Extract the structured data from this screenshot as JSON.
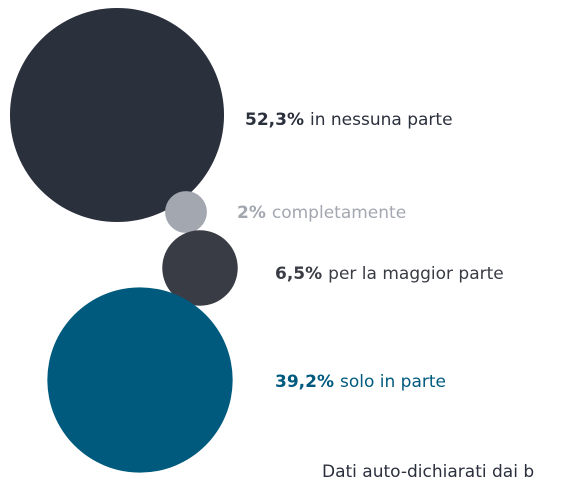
{
  "chart_data": {
    "type": "bubble",
    "categories": [
      "in nessuna parte",
      "completamente",
      "per la maggior parte",
      "solo in parte"
    ],
    "values": [
      52.3,
      2,
      6.5,
      39.2
    ],
    "value_labels": [
      "52,3%",
      "2%",
      "6,5%",
      "39,2%"
    ],
    "colors": [
      "#2b303d",
      "#a3a7b0",
      "#393c44",
      "#005a7e"
    ],
    "note": "Dati auto-dichiarati dai b"
  }
}
